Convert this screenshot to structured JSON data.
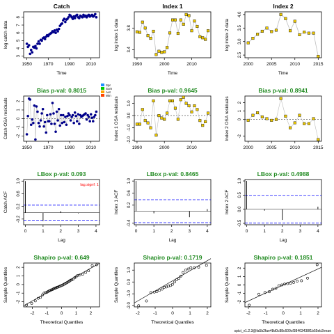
{
  "footer": "spict_v1.2.3@fa5b2fae48d0c88c609cf38463438f1b55eb2eeae",
  "colors": {
    "catch_points": "#00008B",
    "index_points": "#EEC900",
    "green_title": "#228B22",
    "red_note": "#FF0000",
    "blue_dash": "#0000FF",
    "line_gray": "#BEBEBE",
    "legend_colors": [
      "#1E90FF",
      "#00CD00",
      "#FFA500",
      "#FF4500"
    ]
  },
  "chart_data": [
    {
      "type": "scatter",
      "title": "Catch",
      "xlabel": "Time",
      "ylabel": "log catch data",
      "xlim": [
        1947,
        2018
      ],
      "ylim": [
        2.8,
        8.7
      ],
      "xticks": [
        "1950",
        "1970",
        "1990",
        "2010"
      ],
      "yticks": [
        "3",
        "4",
        "5",
        "6",
        "7",
        "8"
      ],
      "x": [
        1950,
        1951,
        1952,
        1953,
        1954,
        1955,
        1956,
        1957,
        1958,
        1959,
        1960,
        1961,
        1962,
        1963,
        1964,
        1965,
        1966,
        1967,
        1968,
        1969,
        1970,
        1971,
        1972,
        1973,
        1974,
        1975,
        1976,
        1977,
        1978,
        1979,
        1980,
        1981,
        1982,
        1983,
        1984,
        1985,
        1986,
        1987,
        1988,
        1989,
        1990,
        1991,
        1992,
        1993,
        1994,
        1995,
        1996,
        1997,
        1998,
        1999,
        2000,
        2001,
        2002,
        2003,
        2004,
        2005,
        2006,
        2007,
        2008,
        2009,
        2010,
        2011,
        2012,
        2013,
        2014,
        2015
      ],
      "values": [
        4.6,
        4.2,
        4.4,
        3.3,
        3.8,
        3.5,
        4.2,
        4.1,
        4.3,
        4.0,
        4.6,
        4.9,
        4.6,
        5.1,
        5.0,
        5.3,
        5.4,
        5.2,
        5.5,
        5.7,
        5.6,
        5.8,
        5.9,
        6.0,
        6.2,
        6.1,
        6.3,
        6.0,
        6.4,
        6.2,
        6.5,
        6.9,
        7.1,
        7.2,
        7.6,
        7.8,
        7.4,
        7.7,
        7.8,
        8.0,
        8.3,
        8.2,
        8.0,
        7.8,
        8.1,
        7.9,
        8.2,
        8.3,
        8.0,
        7.9,
        8.2,
        8.1,
        8.0,
        8.3,
        8.1,
        8.2,
        8.0,
        8.2,
        8.3,
        8.1,
        8.2,
        8.3,
        8.1,
        8.2,
        8.4,
        8.0
      ]
    },
    {
      "type": "line",
      "title": "Index 1",
      "xlabel": "Time",
      "ylabel": "log index 1 data",
      "xlim": [
        1989,
        2017
      ],
      "ylim": [
        3.25,
        4.1
      ],
      "xticks": [
        "1990",
        "2000",
        "2010"
      ],
      "yticks": [
        "3.4",
        "3.8"
      ],
      "x": [
        1990,
        1991,
        1992,
        1993,
        1994,
        1995,
        1996,
        1997,
        1998,
        1999,
        2000,
        2001,
        2002,
        2003,
        2004,
        2005,
        2006,
        2007,
        2008,
        2009,
        2010,
        2011,
        2012,
        2013,
        2014,
        2015,
        2016
      ],
      "values": [
        3.73,
        3.72,
        3.91,
        3.8,
        3.66,
        3.61,
        3.74,
        3.31,
        3.37,
        3.35,
        3.36,
        3.44,
        3.71,
        3.95,
        3.95,
        3.7,
        3.95,
        3.87,
        4.05,
        4.03,
        3.75,
        3.93,
        3.83,
        3.64,
        3.62,
        3.59,
        3.75
      ]
    },
    {
      "type": "line",
      "title": "Index 2",
      "xlabel": "Time",
      "ylabel": "log index 2 data",
      "xlim": [
        1999.3,
        2015.7
      ],
      "ylim": [
        2.4,
        4.1
      ],
      "xticks": [
        "2000",
        "2005",
        "2010",
        "2015"
      ],
      "yticks": [
        "2.5",
        "3.0",
        "3.5",
        "4.0"
      ],
      "x": [
        2000,
        2001,
        2002,
        2003,
        2004,
        2005,
        2006,
        2007,
        2008,
        2009,
        2010,
        2011,
        2012,
        2013,
        2014,
        2015
      ],
      "values": [
        2.95,
        3.12,
        3.27,
        3.38,
        3.5,
        3.37,
        3.42,
        4.0,
        3.85,
        3.4,
        3.75,
        3.25,
        3.35,
        3.31,
        3.31,
        2.45
      ]
    },
    {
      "type": "scatter",
      "title": "Bias p-val: 0.8015",
      "xlabel": "",
      "ylabel": "Catch OSA residuals",
      "xlim": [
        1947,
        2018
      ],
      "ylim": [
        -2.6,
        2.6
      ],
      "xticks": [
        "1950",
        "1970",
        "1990",
        "2010"
      ],
      "yticks": [
        "-2",
        "-1",
        "0",
        "1",
        "2"
      ],
      "legend": {
        "position": "top-right outside",
        "labels": [
          "Spr",
          "Sum",
          "Aut",
          "Win"
        ]
      },
      "x": [
        1950,
        1951,
        1952,
        1953,
        1954,
        1955,
        1956,
        1957,
        1958,
        1959,
        1960,
        1961,
        1962,
        1963,
        1964,
        1965,
        1966,
        1967,
        1968,
        1969,
        1970,
        1971,
        1972,
        1973,
        1974,
        1975,
        1976,
        1977,
        1978,
        1979,
        1980,
        1981,
        1982,
        1983,
        1984,
        1985,
        1986,
        1987,
        1988,
        1989,
        1990,
        1991,
        1992,
        1993,
        1994,
        1995,
        1996,
        1997,
        1998,
        1999,
        2000,
        2001,
        2002,
        2003,
        2004,
        2005,
        2006,
        2007,
        2008,
        2009,
        2010,
        2011,
        2012,
        2013,
        2014,
        2015
      ],
      "values": [
        -1.8,
        0.3,
        2.3,
        2.2,
        -0.7,
        -0.1,
        -0.5,
        1.5,
        -2.4,
        1.4,
        0.8,
        -0.5,
        -0.9,
        -0.2,
        0.6,
        1.1,
        -0.9,
        -0.4,
        -1.6,
        0.4,
        -0.3,
        -0.3,
        0.5,
        -0.6,
        1.8,
        0.6,
        -0.6,
        -1.5,
        0.8,
        -0.2,
        1.1,
        -0.8,
        0.4,
        -0.5,
        0.4,
        -0.4,
        0.2,
        -0.7,
        0.3,
        0.6,
        0.4,
        -0.2,
        0.2,
        0.4,
        -0.5,
        0.7,
        0.3,
        -0.3,
        0.5,
        -0.6,
        0.4,
        0.2,
        0.3,
        0.4,
        0.5,
        0.6,
        -0.1,
        0.4,
        0.2,
        -0.3,
        0.5,
        0.1,
        -0.3,
        0.2,
        0.4,
        0.8
      ]
    },
    {
      "type": "scatter",
      "title": "Bias p-val: 0.9645",
      "xlabel": "",
      "ylabel": "Index 1 OSA residuals",
      "xlim": [
        1989,
        2017
      ],
      "ylim": [
        -2.1,
        1.6
      ],
      "xticks": [
        "1990",
        "2000",
        "2010"
      ],
      "yticks": [
        "-2.0",
        "-1.0",
        "0.0",
        "1.0"
      ],
      "x": [
        1990,
        1991,
        1992,
        1993,
        1994,
        1995,
        1996,
        1997,
        1998,
        1999,
        2000,
        2001,
        2002,
        2003,
        2004,
        2005,
        2006,
        2007,
        2008,
        2009,
        2010,
        2011,
        2012,
        2013,
        2014,
        2015,
        2016
      ],
      "values": [
        -0.7,
        -0.7,
        0.5,
        -0.4,
        -0.6,
        -1.0,
        1.2,
        -1.6,
        0.0,
        -0.2,
        -0.3,
        0.2,
        1.2,
        1.2,
        0.6,
        -0.3,
        1.3,
        1.5,
        1.0,
        0.8,
        0.3,
        0.8,
        0.5,
        -0.4,
        -0.8,
        -0.5,
        0.2
      ]
    },
    {
      "type": "scatter",
      "title": "Bias p-val: 0.8941",
      "xlabel": "",
      "ylabel": "Index 2 OSA residuals",
      "xlim": [
        1999.3,
        2015.7
      ],
      "ylim": [
        -2.6,
        2.8
      ],
      "xticks": [
        "2000",
        "2005",
        "2010",
        "2015"
      ],
      "yticks": [
        "-2",
        "0",
        "1",
        "2"
      ],
      "x": [
        2000,
        2001,
        2002,
        2003,
        2004,
        2005,
        2006,
        2007,
        2008,
        2009,
        2010,
        2011,
        2012,
        2013,
        2014,
        2015
      ],
      "values": [
        -0.1,
        0.5,
        0.8,
        0.3,
        0.1,
        -0.1,
        0.0,
        2.5,
        0.4,
        -1.0,
        -0.4,
        0.5,
        -0.5,
        -0.5,
        0.1,
        -2.4
      ]
    },
    {
      "type": "bar",
      "title": "LBox p-val: 0.093",
      "xlabel": "Lag",
      "ylabel": "Catch ACF",
      "xlim": [
        -0.1,
        4.2
      ],
      "ylim": [
        -0.38,
        1.05
      ],
      "xticks": [
        "0",
        "1",
        "2",
        "3",
        "4"
      ],
      "yticks": [
        "-0.2",
        "0.2",
        "0.6",
        "1.0"
      ],
      "categories": [
        "0",
        "1",
        "2",
        "3",
        "4"
      ],
      "values": [
        1.0,
        -0.26,
        0.05,
        -0.02,
        0.0
      ],
      "significance_band": 0.24,
      "note": "lag.signf: 1"
    },
    {
      "type": "bar",
      "title": "LBox p-val: 0.8465",
      "xlabel": "Lag",
      "ylabel": "Index 1 ACF",
      "xlim": [
        -0.1,
        4.2
      ],
      "ylim": [
        -0.45,
        1.05
      ],
      "xticks": [
        "0",
        "1",
        "2",
        "3",
        "4"
      ],
      "yticks": [
        "-0.4",
        "0.2",
        "0.6",
        "1.0"
      ],
      "categories": [
        "0",
        "1",
        "2",
        "3",
        "4"
      ],
      "values": [
        1.0,
        -0.07,
        0.0,
        -0.2,
        0.07
      ],
      "significance_band": 0.38
    },
    {
      "type": "bar",
      "title": "LBox p-val: 0.4988",
      "xlabel": "Lag",
      "ylabel": "Index 2 ACF",
      "xlim": [
        -0.1,
        4.2
      ],
      "ylim": [
        -0.55,
        1.05
      ],
      "xticks": [
        "0",
        "1",
        "2",
        "3",
        "4"
      ],
      "yticks": [
        "-0.5",
        "0.0",
        "0.5",
        "1.0"
      ],
      "categories": [
        "0",
        "1",
        "2",
        "3",
        "4"
      ],
      "values": [
        1.0,
        -0.05,
        -0.38,
        0.0,
        0.09
      ],
      "significance_band": 0.49
    },
    {
      "type": "scatter",
      "title": "Shapiro p-val: 0.649",
      "xlabel": "Theoretical Quantiles",
      "ylabel": "Sample Quantiles",
      "xlim": [
        -2.6,
        2.6
      ],
      "ylim": [
        -2.6,
        2.5
      ],
      "xticks": [
        "-2",
        "-1",
        "0",
        "1",
        "2"
      ],
      "yticks": [
        "-2",
        "-1",
        "0",
        "1",
        "2"
      ],
      "qq_line": [
        0.0,
        0.95
      ],
      "x": [
        -2.4,
        -2.05,
        -1.8,
        -1.6,
        -1.45,
        -1.3,
        -1.2,
        -1.1,
        -1.0,
        -0.92,
        -0.85,
        -0.78,
        -0.7,
        -0.62,
        -0.55,
        -0.48,
        -0.4,
        -0.33,
        -0.26,
        -0.19,
        -0.12,
        -0.05,
        0.02,
        0.09,
        0.16,
        0.23,
        0.3,
        0.38,
        0.46,
        0.54,
        0.62,
        0.71,
        0.8,
        0.9,
        1.0,
        1.1,
        1.25,
        1.45,
        1.65,
        1.85,
        2.1,
        2.4
      ],
      "values": [
        -2.4,
        -2.2,
        -1.9,
        -1.6,
        -1.5,
        -1.2,
        -1.0,
        -0.95,
        -0.9,
        -0.8,
        -0.75,
        -0.7,
        -0.62,
        -0.58,
        -0.5,
        -0.45,
        -0.4,
        -0.34,
        -0.3,
        -0.25,
        -0.2,
        -0.15,
        -0.1,
        -0.05,
        0.02,
        0.08,
        0.15,
        0.22,
        0.3,
        0.4,
        0.5,
        0.55,
        0.65,
        0.8,
        0.9,
        1.05,
        1.1,
        1.2,
        1.4,
        1.6,
        2.2,
        2.3
      ]
    },
    {
      "type": "scatter",
      "title": "Shapiro p-val: 0.1719",
      "xlabel": "Theoretical Quantiles",
      "ylabel": "Sample Quantiles",
      "xlim": [
        -2.2,
        2.2
      ],
      "ylim": [
        -2.1,
        1.6
      ],
      "xticks": [
        "-2",
        "-1",
        "0",
        "1",
        "2"
      ],
      "yticks": [
        "-2.0",
        "-1.0",
        "0.0",
        "1.0"
      ],
      "qq_line": [
        0.1,
        0.85
      ],
      "x": [
        -1.95,
        -1.5,
        -1.25,
        -1.05,
        -0.9,
        -0.75,
        -0.6,
        -0.48,
        -0.36,
        -0.24,
        -0.12,
        0.0,
        0.12,
        0.24,
        0.36,
        0.48,
        0.6,
        0.75,
        0.9,
        1.05,
        1.25,
        1.5,
        1.95
      ],
      "values": [
        -2.0,
        -1.6,
        -0.9,
        -0.85,
        -0.8,
        -0.7,
        -0.6,
        -0.45,
        -0.42,
        -0.35,
        -0.3,
        -0.2,
        0.0,
        0.2,
        0.3,
        0.5,
        0.8,
        1.0,
        1.1,
        1.2,
        1.2,
        1.25,
        1.4
      ]
    },
    {
      "type": "scatter",
      "title": "Shapiro p-val: 0.1851",
      "xlabel": "Theoretical Quantiles",
      "ylabel": "Sample Quantiles",
      "xlim": [
        -2.2,
        2.2
      ],
      "ylim": [
        -2.6,
        2.6
      ],
      "xticks": [
        "-2",
        "-1",
        "0",
        "1",
        "2"
      ],
      "yticks": [
        "-2",
        "-1",
        "0",
        "1",
        "2"
      ],
      "qq_line": [
        0.0,
        0.95
      ],
      "x": [
        -1.95,
        -1.4,
        -1.05,
        -0.8,
        -0.6,
        -0.42,
        -0.25,
        -0.08,
        0.08,
        0.25,
        0.42,
        0.6,
        0.8,
        1.05,
        1.4,
        1.95
      ],
      "values": [
        -2.4,
        -1.1,
        -0.9,
        -0.8,
        -0.5,
        -0.4,
        -0.1,
        0.0,
        0.1,
        0.15,
        0.2,
        0.3,
        0.45,
        0.5,
        0.8,
        2.4
      ]
    }
  ]
}
